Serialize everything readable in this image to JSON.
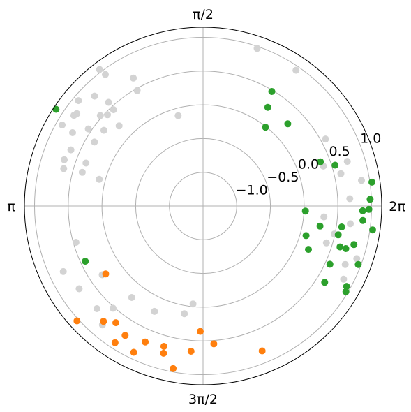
{
  "chart_data": {
    "type": "scatter",
    "projection": "polar",
    "title": "",
    "theta_ticks": [
      "",
      "π/2",
      "π",
      "3π/2",
      "2π"
    ],
    "r_ticks": [
      {
        "value": -1.0,
        "label": "−1.0"
      },
      {
        "value": -0.5,
        "label": "−0.5"
      },
      {
        "value": 0.0,
        "label": "0.0"
      },
      {
        "value": 0.5,
        "label": "0.5"
      },
      {
        "value": 1.0,
        "label": "1.0"
      }
    ],
    "rlim": [
      -1.5,
      1.15
    ],
    "r_label_angle_deg": 22.5,
    "grid": true,
    "legend": "none",
    "colors": {
      "gray": "#d3d3d3",
      "orange": "#ff7f0e",
      "green": "#2ca02c"
    },
    "series": [
      {
        "color_key": "gray",
        "points": [
          [
            2.22,
            1.04
          ],
          [
            2.07,
            0.66
          ],
          [
            2.35,
            0.79
          ],
          [
            2.44,
            0.92
          ],
          [
            2.53,
            0.84
          ],
          [
            2.63,
            0.72
          ],
          [
            2.55,
            0.55
          ],
          [
            2.32,
            0.45
          ],
          [
            2.74,
            0.63
          ],
          [
            2.79,
            0.35
          ],
          [
            2.89,
            0.09
          ],
          [
            2.38,
            0.22
          ],
          [
            2.61,
            0.37
          ],
          [
            2.82,
            0.67
          ],
          [
            2.88,
            0.64
          ],
          [
            2.38,
            0.46
          ],
          [
            2.42,
            0.53
          ],
          [
            2.09,
            0.47
          ],
          [
            2.31,
            0.58
          ],
          [
            2.21,
            0.93
          ],
          [
            2.62,
            0.91
          ],
          [
            2.87,
            0.36
          ],
          [
            2.51,
            0.82
          ],
          [
            2.49,
            0.35
          ],
          [
            1.84,
            -0.11
          ],
          [
            1.24,
            0.97
          ],
          [
            0.97,
            0.94
          ],
          [
            0.3,
            0.74
          ],
          [
            0.32,
            0.38
          ],
          [
            0.5,
            0.57
          ],
          [
            0.23,
            0.6
          ],
          [
            0.16,
            0.88
          ],
          [
            0.05,
            0.68
          ],
          [
            -0.12,
            0.7
          ],
          [
            -0.29,
            0.41
          ],
          [
            -0.21,
            0.49
          ],
          [
            -0.33,
            0.91
          ],
          [
            -0.48,
            0.85
          ],
          [
            -0.09,
            0.3
          ],
          [
            -0.39,
            0.78
          ],
          [
            3.42,
            0.46
          ],
          [
            3.58,
            0.79
          ],
          [
            3.73,
            0.71
          ],
          [
            3.99,
            0.52
          ],
          [
            4.05,
            0.22
          ],
          [
            4.28,
            0.22
          ],
          [
            4.61,
            -0.04
          ],
          [
            4.54,
            0.12
          ],
          [
            3.91,
            0.69
          ],
          [
            3.74,
            0.31
          ],
          [
            4.01,
            0.81
          ]
        ]
      },
      {
        "color_key": "orange",
        "points": [
          [
            4.27,
            0.9
          ],
          [
            4.14,
            0.91
          ],
          [
            4.31,
            0.69
          ],
          [
            4.45,
            0.76
          ],
          [
            4.44,
            0.66
          ],
          [
            4.63,
            0.66
          ],
          [
            4.53,
            0.95
          ],
          [
            4.69,
            0.36
          ],
          [
            4.79,
            0.55
          ],
          [
            5.1,
            0.82
          ],
          [
            4.07,
            0.66
          ],
          [
            3.88,
            1.03
          ],
          [
            3.75,
            0.26
          ],
          [
            4.0,
            0.76
          ],
          [
            4.17,
            0.74
          ]
        ]
      },
      {
        "color_key": "green",
        "points": [
          [
            0.9,
            -0.01
          ],
          [
            1.03,
            0.48
          ],
          [
            0.77,
            0.25
          ],
          [
            0.36,
            0.36
          ],
          [
            0.3,
            0.55
          ],
          [
            0.14,
            1.03
          ],
          [
            0.04,
            0.98
          ],
          [
            -0.03,
            0.87
          ],
          [
            -0.09,
            0.88
          ],
          [
            -0.29,
            0.62
          ],
          [
            -0.17,
            0.26
          ],
          [
            -0.21,
            0.55
          ],
          [
            -0.29,
            0.71
          ],
          [
            -0.25,
            0.81
          ],
          [
            -0.14,
            1.04
          ],
          [
            -0.02,
            0.96
          ],
          [
            -0.56,
            0.63
          ],
          [
            -0.51,
            0.94
          ],
          [
            -0.54,
            0.97
          ],
          [
            -0.28,
            0.09
          ],
          [
            -0.05,
            0.02
          ],
          [
            -0.39,
            0.19
          ],
          [
            -0.15,
            0.58
          ],
          [
            -0.43,
            0.57
          ],
          [
            -0.36,
            0.96
          ],
          [
            2.56,
            1.11
          ],
          [
            0.99,
            0.25
          ],
          [
            3.58,
            0.43
          ]
        ]
      }
    ]
  }
}
